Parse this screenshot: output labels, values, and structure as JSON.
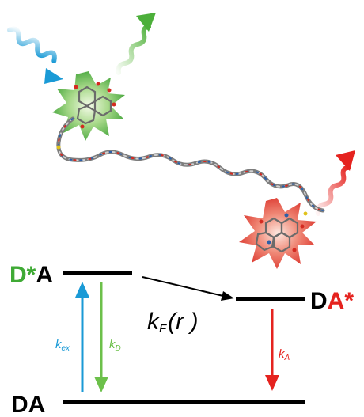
{
  "labels": {
    "donor_excited": {
      "prefix": "D",
      "star": "*",
      "suffix": "A"
    },
    "acceptor_excited": {
      "prefix": "D",
      "main": "A",
      "star": "*"
    },
    "ground_state": "DA",
    "k_ex": {
      "main": "k",
      "sub": "ex"
    },
    "k_D": {
      "main": "k",
      "sub": "D"
    },
    "k_A": {
      "main": "k",
      "sub": "A"
    },
    "k_F": {
      "main": "k",
      "sub": "F",
      "arg": "(r )"
    }
  },
  "colors": {
    "donor_green": "#3faa35",
    "acceptor_red": "#e5231f",
    "excitation_blue": "#1a9ad6",
    "donor_emission_green": "#6cc04a",
    "level_black": "#000000"
  },
  "icons": {
    "excitation_photon": "wavy-arrow-blue",
    "donor_emission_photon": "wavy-arrow-green",
    "acceptor_emission_photon": "wavy-arrow-red",
    "donor_burst": "green-star-burst",
    "acceptor_burst": "red-star-burst",
    "molecule": "polyproline-linker"
  }
}
